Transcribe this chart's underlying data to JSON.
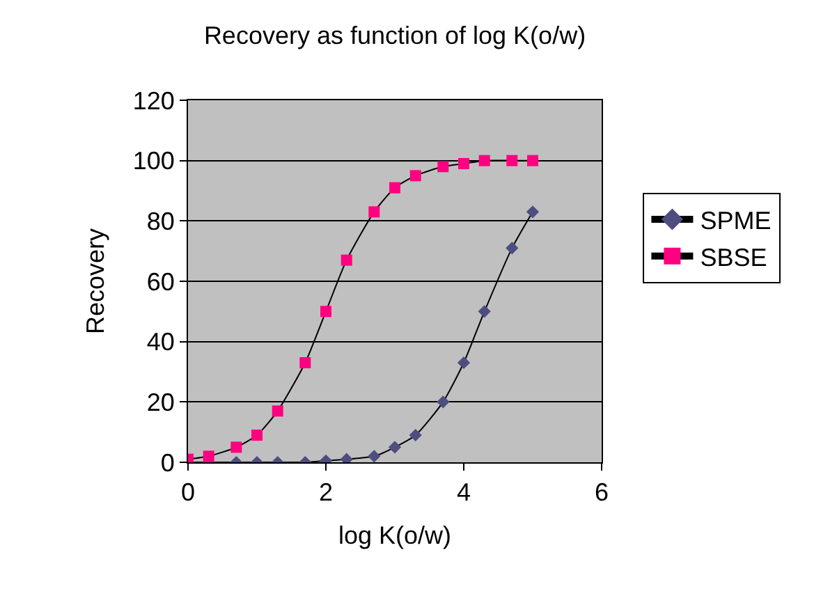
{
  "chart_data": {
    "type": "line",
    "title": "Recovery as function of log K(o/w)",
    "xlabel": "log K(o/w)",
    "ylabel": "Recovery",
    "x": [
      0,
      0.3,
      0.7,
      1,
      1.3,
      1.7,
      2,
      2.3,
      2.7,
      3,
      3.3,
      3.7,
      4,
      4.3,
      4.7,
      5
    ],
    "series": [
      {
        "name": "SPME",
        "color": "#4d4d80",
        "marker": "diamond",
        "values": [
          0,
          0,
          0,
          0,
          0,
          0,
          0.5,
          1,
          2,
          5,
          9,
          20,
          33,
          50,
          71,
          83
        ]
      },
      {
        "name": "SBSE",
        "color": "#ff0080",
        "marker": "square",
        "values": [
          1,
          2,
          5,
          9,
          17,
          33,
          50,
          67,
          83,
          91,
          95,
          98,
          99,
          100,
          100,
          100
        ]
      }
    ],
    "xlim": [
      0,
      6
    ],
    "xticks": [
      0,
      2,
      4,
      6
    ],
    "ylim": [
      0,
      120
    ],
    "yticks": [
      0,
      20,
      40,
      60,
      80,
      100,
      120
    ],
    "grid": "y",
    "legend": "right"
  }
}
